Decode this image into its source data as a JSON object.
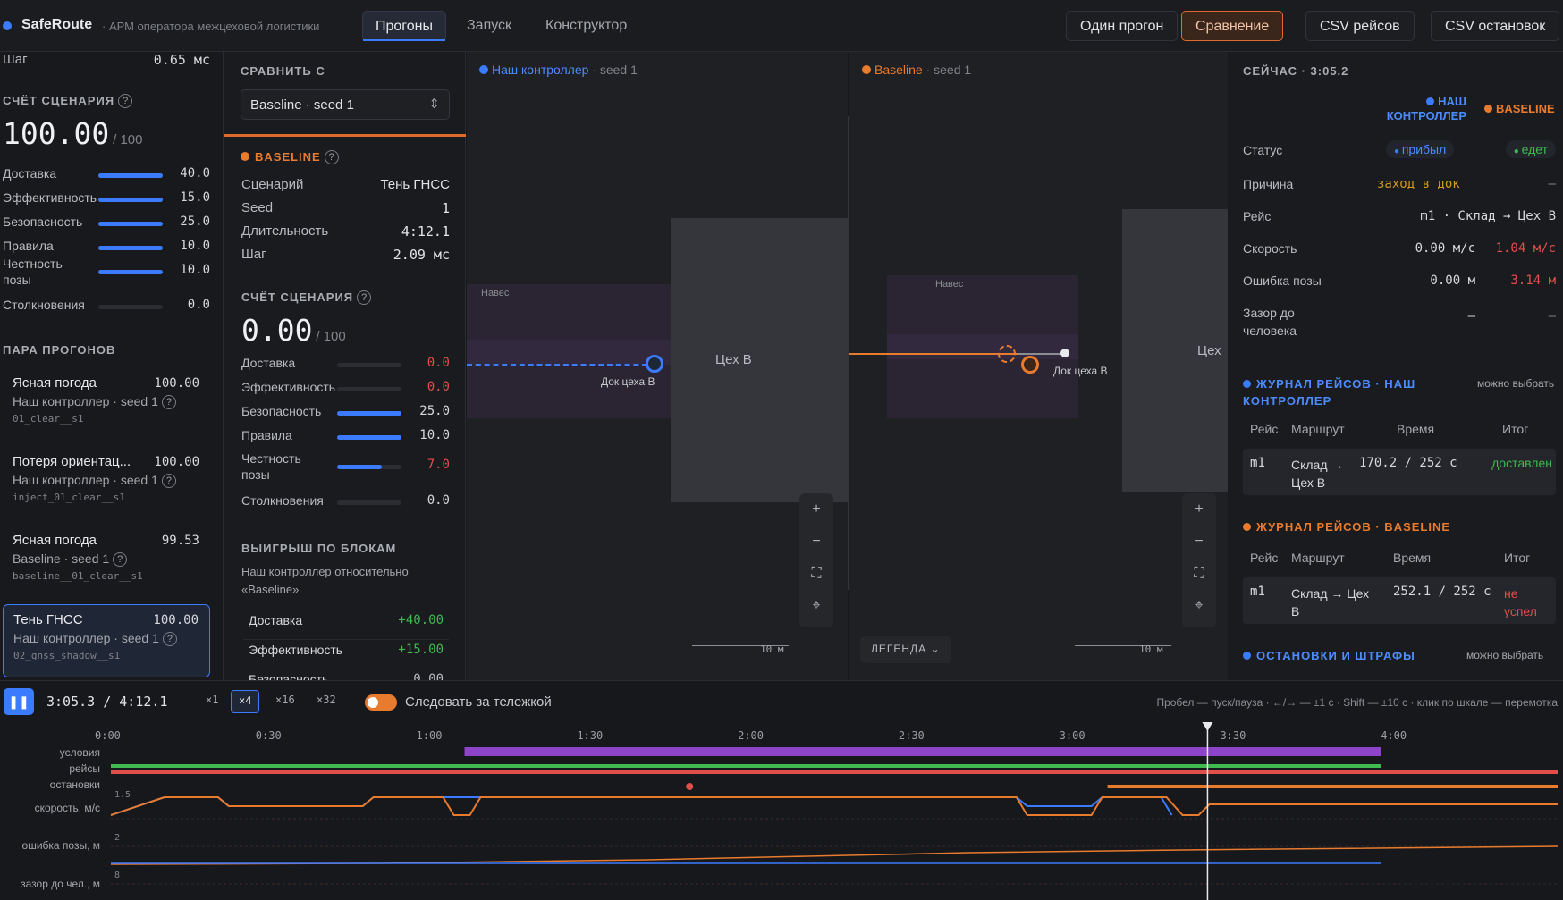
{
  "app": {
    "name": "SafeRoute",
    "subtitle": "· АРМ оператора межцеховой логистики"
  },
  "nav": {
    "tabs": [
      "Прогоны",
      "Запуск",
      "Конструктор"
    ],
    "active": "Прогоны"
  },
  "toolbar": {
    "single_run": "Один прогон",
    "compare": "Сравнение",
    "csv_trips": "CSV рейсов",
    "csv_stops": "CSV остановок"
  },
  "left": {
    "step_label": "Шаг",
    "step_value": "0.65 мс",
    "score_title": "СЧЁТ СЦЕНАРИЯ",
    "score": "100.00",
    "score_max": "/ 100",
    "score_rows": [
      {
        "label": "Доставка",
        "value": "40.0",
        "fill": 1.0
      },
      {
        "label": "Эффективность",
        "value": "15.0",
        "fill": 1.0
      },
      {
        "label": "Безопасность",
        "value": "25.0",
        "fill": 1.0
      },
      {
        "label": "Правила",
        "value": "10.0",
        "fill": 1.0
      },
      {
        "label": "Честность позы",
        "value": "10.0",
        "fill": 1.0
      },
      {
        "label": "Столкновения",
        "value": "0.0",
        "fill": 0.0
      }
    ],
    "pair_title": "ПАРА ПРОГОНОВ",
    "runs": [
      {
        "title": "Ясная погода",
        "score": "100.00",
        "meta": "Наш контроллер · seed 1",
        "code": "01_clear__s1"
      },
      {
        "title": "Потеря ориентац...",
        "score": "100.00",
        "meta": "Наш контроллер · seed 1",
        "code": "inject_01_clear__s1"
      },
      {
        "title": "Ясная погода",
        "score": "99.53",
        "meta": "Baseline · seed 1",
        "code": "baseline__01_clear__s1"
      },
      {
        "title": "Тень ГНСС",
        "score": "100.00",
        "meta": "Наш контроллер · seed 1",
        "code": "02_gnss_shadow__s1"
      }
    ]
  },
  "compare": {
    "title": "СРАВНИТЬ С",
    "select_value": "Baseline · seed 1",
    "baseline_title": "BASELINE",
    "info": [
      {
        "k": "Сценарий",
        "v": "Тень ГНСС"
      },
      {
        "k": "Seed",
        "v": "1"
      },
      {
        "k": "Длительность",
        "v": "4:12.1"
      },
      {
        "k": "Шаг",
        "v": "2.09 мс"
      }
    ],
    "score_title": "СЧЁТ СЦЕНАРИЯ",
    "score": "0.00",
    "score_max": "/ 100",
    "rows": [
      {
        "label": "Доставка",
        "value": "0.0",
        "fill": 0.0,
        "color": "#e0504b"
      },
      {
        "label": "Эффективность",
        "value": "0.0",
        "fill": 0.0,
        "color": "#e0504b"
      },
      {
        "label": "Безопасность",
        "value": "25.0",
        "fill": 1.0,
        "color": "#d6d8dc"
      },
      {
        "label": "Правила",
        "value": "10.0",
        "fill": 1.0,
        "color": "#d6d8dc"
      },
      {
        "label": "Честность позы",
        "value": "7.0",
        "fill": 0.7,
        "color": "#e0504b"
      },
      {
        "label": "Столкновения",
        "value": "0.0",
        "fill": 0.0,
        "color": "#d6d8dc"
      }
    ],
    "gain_title": "ВЫИГРЫШ ПО БЛОКАМ",
    "gain_sub": "Наш контроллер относительно «Baseline»",
    "gains": [
      {
        "label": "Доставка",
        "value": "+40.00"
      },
      {
        "label": "Эффективность",
        "value": "+15.00"
      },
      {
        "label": "Безопасность",
        "value": "0.00"
      }
    ]
  },
  "map_left": {
    "label": "Наш контроллер",
    "seed": "· seed 1",
    "zone": "Навес",
    "building": "Цех В",
    "dock": "Док цеха В",
    "scale": "10 м"
  },
  "map_right": {
    "label": "Baseline",
    "seed": "· seed 1",
    "zone": "Навес",
    "building": "Цех",
    "dock": "Док цеха В",
    "scale": "10 м",
    "legend": "ЛЕГЕНДА"
  },
  "now": {
    "title": "СЕЙЧАС · 3:05.2",
    "col_ours": "НАШ КОНТРОЛЛЕР",
    "col_base": "BASELINE",
    "rows": [
      {
        "k": "Статус",
        "a": "прибыл",
        "b": "едет"
      },
      {
        "k": "Причина",
        "a": "заход в док",
        "b": "—"
      },
      {
        "k": "Рейс",
        "a": "m1 · Склад → Цех В",
        "b": ""
      },
      {
        "k": "Скорость",
        "a": "0.00 м/с",
        "b": "1.04 м/с"
      },
      {
        "k": "Ошибка позы",
        "a": "0.00 м",
        "b": "3.14 м"
      },
      {
        "k": "Зазор до человека",
        "a": "—",
        "b": "—"
      }
    ]
  },
  "log_ours": {
    "title": "ЖУРНАЛ РЕЙСОВ · НАШ КОНТРОЛЛЕР",
    "hint": "можно выбрать",
    "headers": [
      "Рейс",
      "Маршрут",
      "Время",
      "Итог"
    ],
    "row": [
      "m1",
      "Склад → Цех В",
      "170.2 / 252 с",
      "доставлен"
    ]
  },
  "log_base": {
    "title": "ЖУРНАЛ РЕЙСОВ · BASELINE",
    "headers": [
      "Рейс",
      "Маршрут",
      "Время",
      "Итог"
    ],
    "row": [
      "m1",
      "Склад → Цех В",
      "252.1 / 252 с",
      "не успел"
    ]
  },
  "stops": {
    "title": "ОСТАНОВКИ И ШТРАФЫ",
    "hint": "можно выбрать"
  },
  "player": {
    "time": "3:05.3 / 4:12.1",
    "speeds": [
      "×1",
      "×4",
      "×16",
      "×32"
    ],
    "active_speed": "×4",
    "follow": "Следовать за тележкой",
    "shortcuts": "Пробел — пуск/пауза · ←/→ — ±1 с · Shift — ±10 с · клик по шкале — перемотка"
  },
  "timeline": {
    "ticks": [
      "0:00",
      "0:30",
      "1:00",
      "1:30",
      "2:00",
      "2:30",
      "3:00",
      "3:30",
      "4:00"
    ],
    "lanes": [
      "условия",
      "рейсы",
      "остановки",
      "скорость, м/с",
      "ошибка позы, м",
      "зазор до чел., м"
    ],
    "axis_marks": [
      "1.5",
      "2",
      "8"
    ],
    "cursor_fraction": 0.758,
    "colors": {
      "ours": "#3b7bff",
      "baseline": "#e87b2e",
      "condition": "#8e44c9",
      "trip": "#3fb950",
      "stop": "#e0504b"
    }
  }
}
